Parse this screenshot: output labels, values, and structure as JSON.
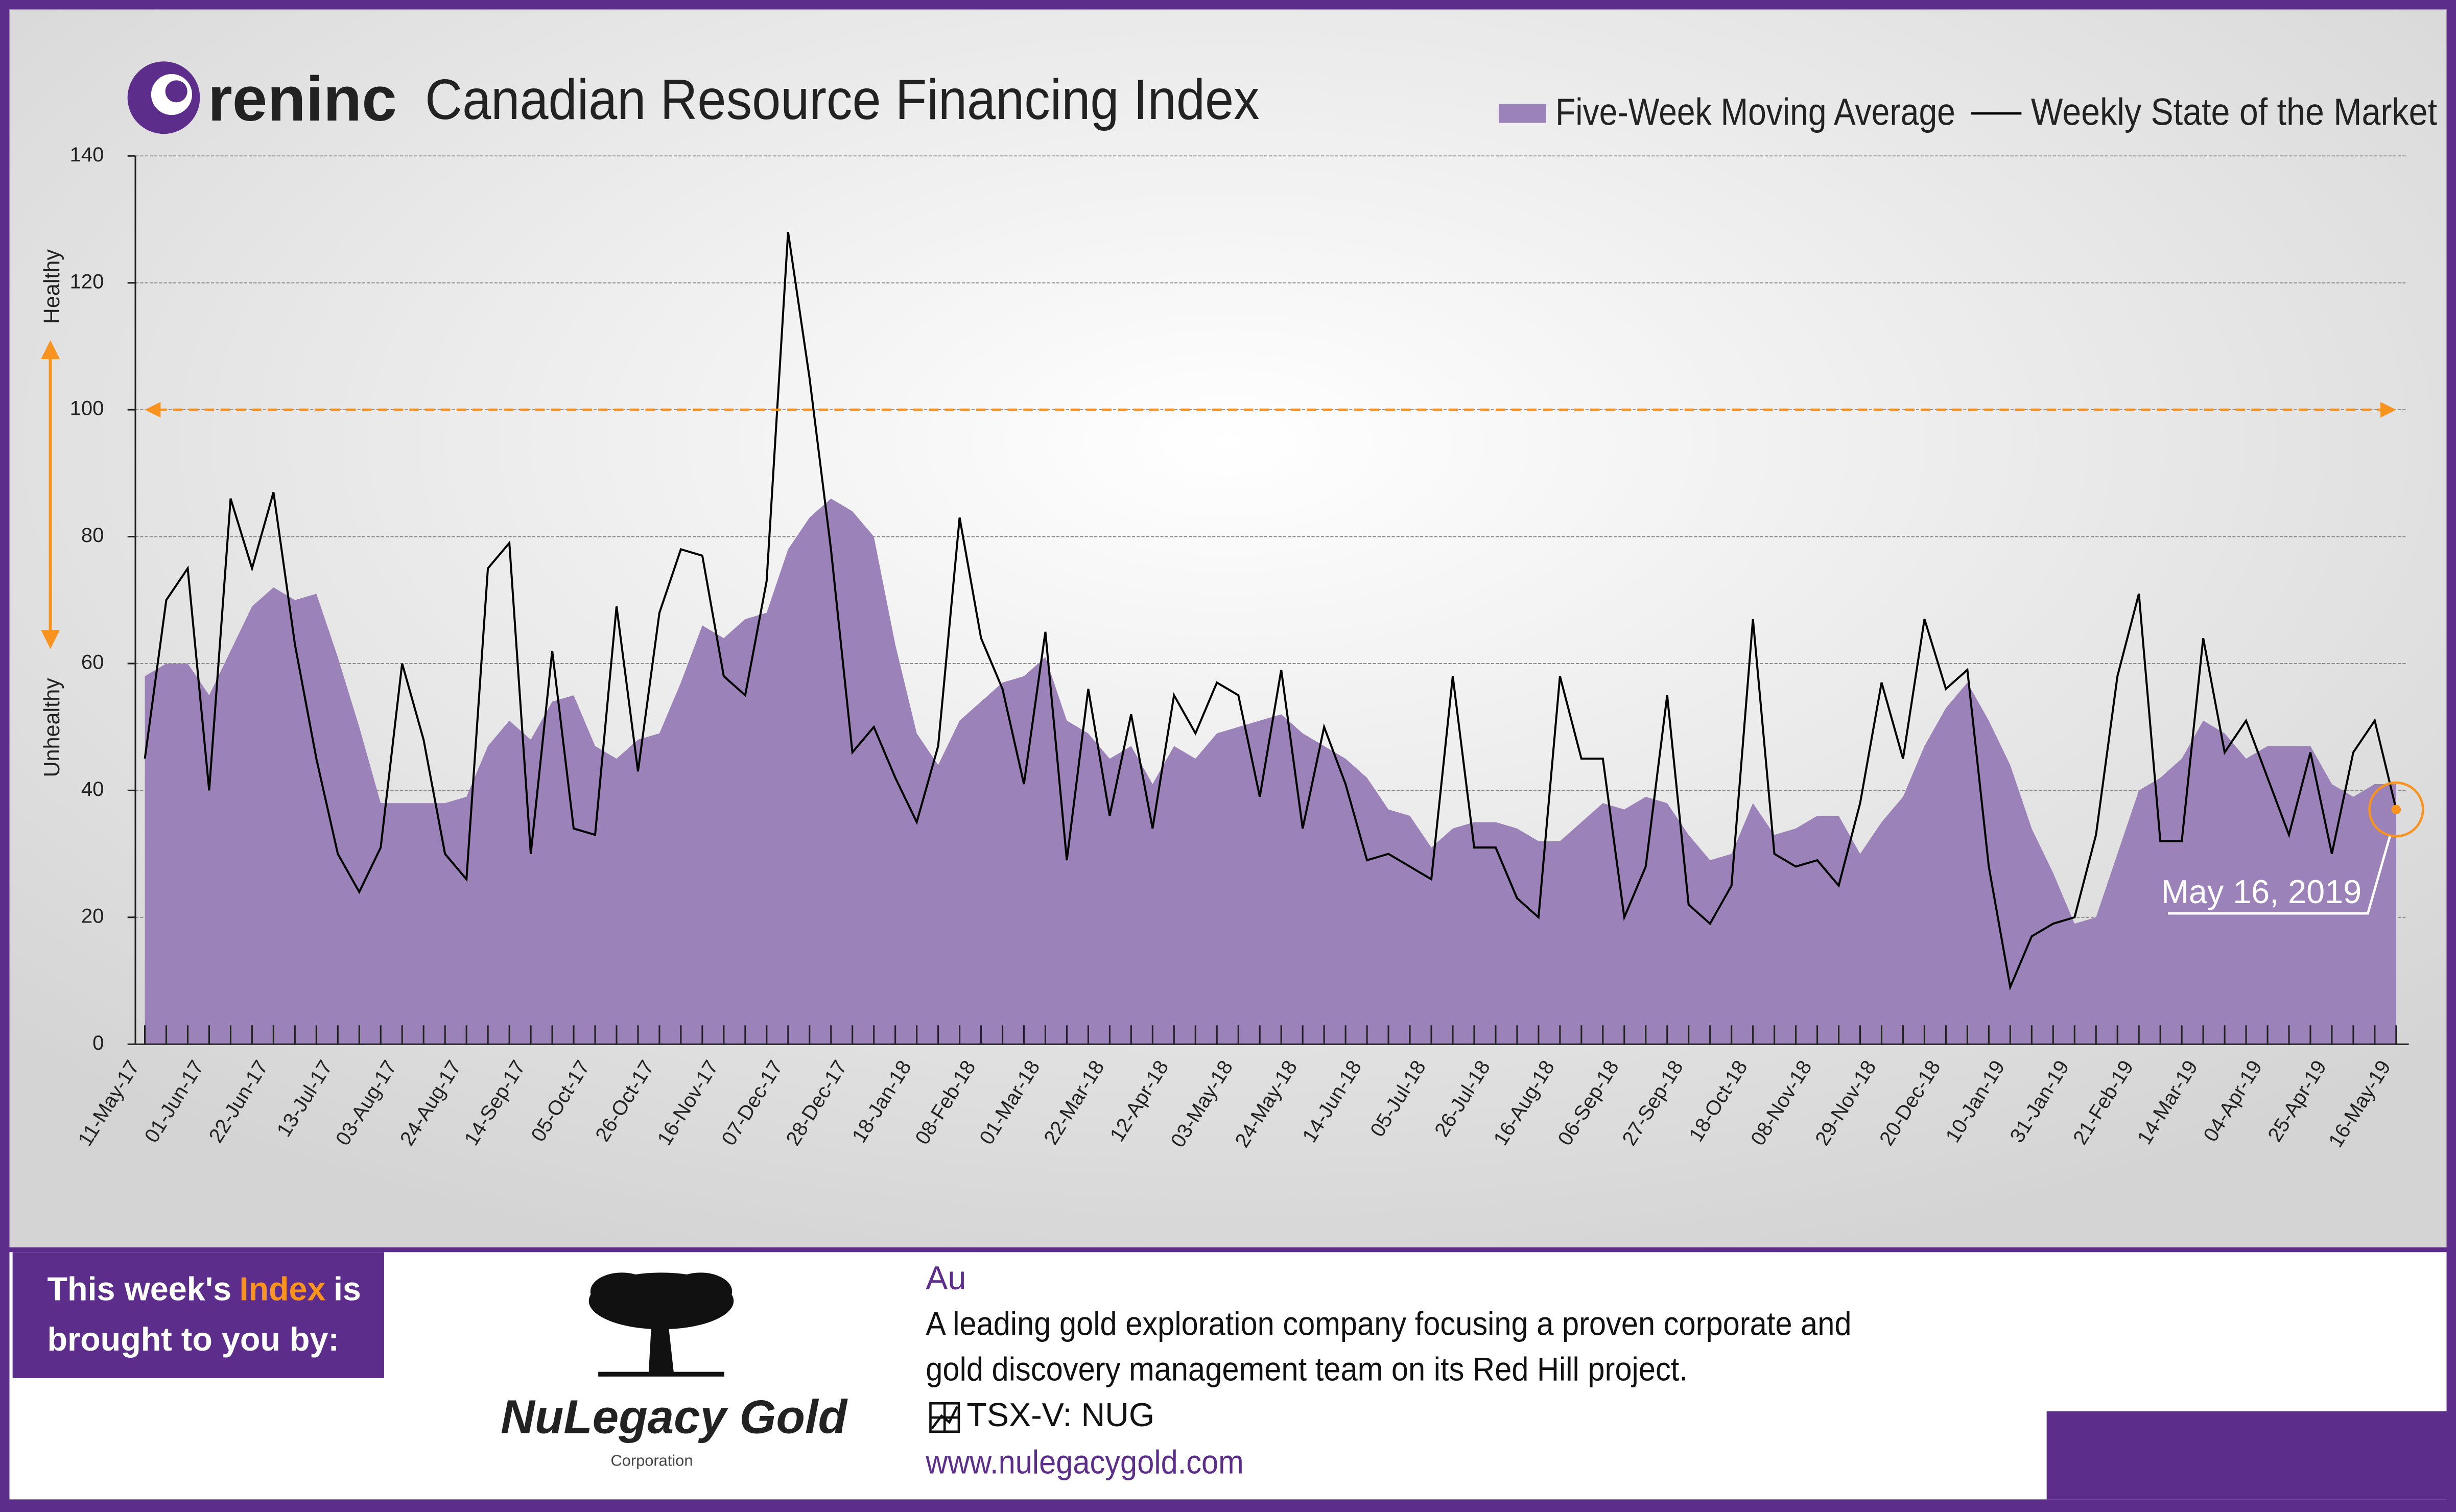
{
  "chart_data": {
    "type": "area-line",
    "logo": "reninc",
    "title": "Canadian Resource Financing Index",
    "y_label_top": "Healthy",
    "y_label_bottom": "Unhealthy",
    "annotation": "May 16, 2019",
    "reference_line": 100,
    "reference_color": "#f7931e",
    "ylim": [
      0,
      140
    ],
    "yticks": [
      0,
      20,
      40,
      60,
      80,
      100,
      120,
      140
    ],
    "grid": true,
    "legend": "top-right",
    "categories": [
      "11-May-17",
      null,
      null,
      "01-Jun-17",
      null,
      null,
      "22-Jun-17",
      null,
      null,
      "13-Jul-17",
      null,
      null,
      "03-Aug-17",
      null,
      null,
      "24-Aug-17",
      null,
      null,
      "14-Sep-17",
      null,
      null,
      "05-Oct-17",
      null,
      null,
      "26-Oct-17",
      null,
      null,
      "16-Nov-17",
      null,
      null,
      "07-Dec-17",
      null,
      null,
      "28-Dec-17",
      null,
      null,
      "18-Jan-18",
      null,
      null,
      "08-Feb-18",
      null,
      null,
      "01-Mar-18",
      null,
      null,
      "22-Mar-18",
      null,
      null,
      "12-Apr-18",
      null,
      null,
      "03-May-18",
      null,
      null,
      "24-May-18",
      null,
      null,
      "14-Jun-18",
      null,
      null,
      "05-Jul-18",
      null,
      null,
      "26-Jul-18",
      null,
      null,
      "16-Aug-18",
      null,
      null,
      "06-Sep-18",
      null,
      null,
      "27-Sep-18",
      null,
      null,
      "18-Oct-18",
      null,
      null,
      "08-Nov-18",
      null,
      null,
      "29-Nov-18",
      null,
      null,
      "20-Dec-18",
      null,
      null,
      "10-Jan-19",
      null,
      null,
      "31-Jan-19",
      null,
      null,
      "21-Feb-19",
      null,
      null,
      "14-Mar-19",
      null,
      null,
      "04-Apr-19",
      null,
      null,
      "25-Apr-19",
      null,
      null,
      "16-May-19"
    ],
    "series": [
      {
        "name": "Five-Week Moving Average",
        "kind": "area",
        "color": "#9b82b8",
        "values": [
          58,
          60,
          60,
          55,
          62,
          69,
          72,
          70,
          71,
          61,
          50,
          38,
          38,
          38,
          38,
          39,
          47,
          51,
          48,
          54,
          55,
          47,
          45,
          48,
          49,
          57,
          66,
          64,
          67,
          68,
          78,
          83,
          86,
          84,
          80,
          63,
          49,
          44,
          51,
          54,
          57,
          58,
          61,
          51,
          49,
          45,
          47,
          41,
          47,
          45,
          49,
          50,
          51,
          52,
          49,
          47,
          45,
          42,
          37,
          36,
          31,
          34,
          35,
          35,
          34,
          32,
          32,
          35,
          38,
          37,
          39,
          38,
          33,
          29,
          30,
          38,
          33,
          34,
          36,
          36,
          30,
          35,
          39,
          47,
          53,
          57,
          51,
          44,
          34,
          27,
          19,
          20,
          30,
          40,
          42,
          45,
          51,
          49,
          45,
          47,
          47,
          47,
          41,
          39,
          41,
          41
        ]
      },
      {
        "name": "Weekly State of the Market",
        "kind": "line",
        "color": "#000000",
        "values": [
          45,
          70,
          75,
          40,
          86,
          75,
          87,
          63,
          45,
          30,
          24,
          31,
          60,
          48,
          30,
          26,
          75,
          79,
          30,
          62,
          34,
          33,
          69,
          43,
          68,
          78,
          77,
          58,
          55,
          73,
          128,
          105,
          78,
          46,
          50,
          42,
          35,
          47,
          83,
          64,
          56,
          41,
          65,
          29,
          56,
          36,
          52,
          34,
          55,
          49,
          57,
          55,
          39,
          59,
          34,
          50,
          41,
          29,
          30,
          28,
          26,
          58,
          31,
          31,
          23,
          20,
          58,
          45,
          45,
          20,
          28,
          55,
          22,
          19,
          25,
          67,
          30,
          28,
          29,
          25,
          38,
          57,
          45,
          67,
          56,
          59,
          28,
          9,
          17,
          19,
          20,
          33,
          58,
          71,
          32,
          32,
          64,
          46,
          51,
          42,
          33,
          46,
          30,
          46,
          51,
          37
        ]
      }
    ]
  },
  "sponsor": {
    "intro": [
      "This week's",
      "Index",
      "is",
      "brought to you by:"
    ],
    "name": "NuLegacy Gold",
    "name_sub": "Corporation",
    "symbol": "Au",
    "description": [
      "A leading gold exploration company focusing a proven corporate and",
      "gold discovery management team on its Red Hill project."
    ],
    "ticker": "TSX-V:  NUG",
    "url": "www.nulegacygold.com"
  }
}
